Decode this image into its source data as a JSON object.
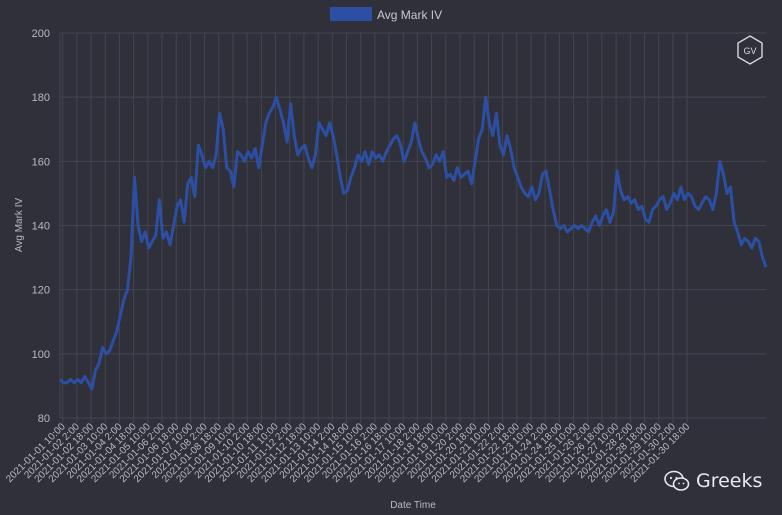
{
  "colors": {
    "background": "#2f3039",
    "grid": "#444552",
    "series": "#2c4fa3",
    "text": "#b9b9c3"
  },
  "watermark": {
    "text": "Greeks",
    "icon": "wechat-icon"
  },
  "badge": {
    "text": "GV"
  },
  "chart_data": {
    "type": "line",
    "title": "",
    "xlabel": "Date Time",
    "ylabel": "Avg Mark IV",
    "ylim": [
      80,
      200
    ],
    "y_ticks": [
      80,
      100,
      120,
      140,
      160,
      180,
      200
    ],
    "grid": true,
    "legend_position": "top",
    "x_ticks": [
      "2021-01-01 10:00",
      "2021-01-02 2:00",
      "2021-01-02 18:00",
      "2021-01-03 10:00",
      "2021-01-04 2:00",
      "2021-01-04 18:00",
      "2021-01-05 10:00",
      "2021-01-06 2:00",
      "2021-01-06 18:00",
      "2021-01-07 10:00",
      "2021-01-08 2:00",
      "2021-01-08 18:00",
      "2021-01-09 10:00",
      "2021-01-10 2:00",
      "2021-01-10 18:00",
      "2021-01-11 10:00",
      "2021-01-12 2:00",
      "2021-01-12 18:00",
      "2021-01-13 10:00",
      "2021-01-14 2:00",
      "2021-01-14 18:00",
      "2021-01-15 10:00",
      "2021-01-16 2:00",
      "2021-01-16 18:00",
      "2021-01-17 10:00",
      "2021-01-18 2:00",
      "2021-01-18 18:00",
      "2021-01-19 10:00",
      "2021-01-20 2:00",
      "2021-01-20 18:00",
      "2021-01-21 10:00",
      "2021-01-22 2:00",
      "2021-01-22 18:00",
      "2021-01-23 10:00",
      "2021-01-24 2:00",
      "2021-01-24 18:00",
      "2021-01-25 10:00",
      "2021-01-26 2:00",
      "2021-01-26 18:00",
      "2021-01-27 10:00",
      "2021-01-28 2:00",
      "2021-01-28 18:00",
      "2021-01-29 10:00",
      "2021-01-30 2:00",
      "2021-01-30 18:00"
    ],
    "series": [
      {
        "name": "Avg Mark IV",
        "x_start": "2021-01-01 07:00",
        "x_step_hours": 4,
        "values": [
          92,
          91,
          91,
          92,
          91,
          92,
          91,
          93,
          91,
          89,
          95,
          97,
          102,
          100,
          101,
          104,
          107,
          112,
          117,
          120,
          130,
          155,
          140,
          135,
          138,
          133,
          135,
          137,
          148,
          136,
          138,
          134,
          140,
          146,
          148,
          141,
          153,
          155,
          149,
          165,
          162,
          158,
          160,
          158,
          162,
          175,
          170,
          158,
          157,
          152,
          163,
          162,
          160,
          163,
          161,
          164,
          158,
          165,
          172,
          175,
          177,
          180,
          176,
          172,
          166,
          178,
          168,
          162,
          164,
          165,
          161,
          158,
          162,
          172,
          170,
          168,
          172,
          168,
          162,
          155,
          150,
          151,
          155,
          158,
          162,
          160,
          163,
          159,
          163,
          161,
          162,
          160,
          163,
          165,
          167,
          168,
          165,
          160,
          163,
          166,
          172,
          167,
          163,
          161,
          158,
          159,
          162,
          160,
          163,
          155,
          156,
          154,
          158,
          155,
          156,
          157,
          153,
          160,
          167,
          170,
          180,
          172,
          168,
          175,
          165,
          162,
          168,
          164,
          158,
          155,
          152,
          150,
          149,
          152,
          148,
          150,
          156,
          157,
          151,
          145,
          140,
          139,
          140,
          138,
          139,
          140,
          139,
          140,
          139,
          138,
          141,
          143,
          140,
          143,
          145,
          141,
          144,
          157,
          151,
          148,
          149,
          147,
          148,
          145,
          146,
          142,
          141,
          145,
          146,
          148,
          149,
          145,
          147,
          150,
          148,
          152,
          148,
          150,
          149,
          146,
          145,
          147,
          149,
          148,
          145,
          150,
          160,
          156,
          150,
          152,
          141,
          138,
          134,
          136,
          135,
          133,
          136,
          135,
          130,
          127
        ]
      }
    ]
  }
}
